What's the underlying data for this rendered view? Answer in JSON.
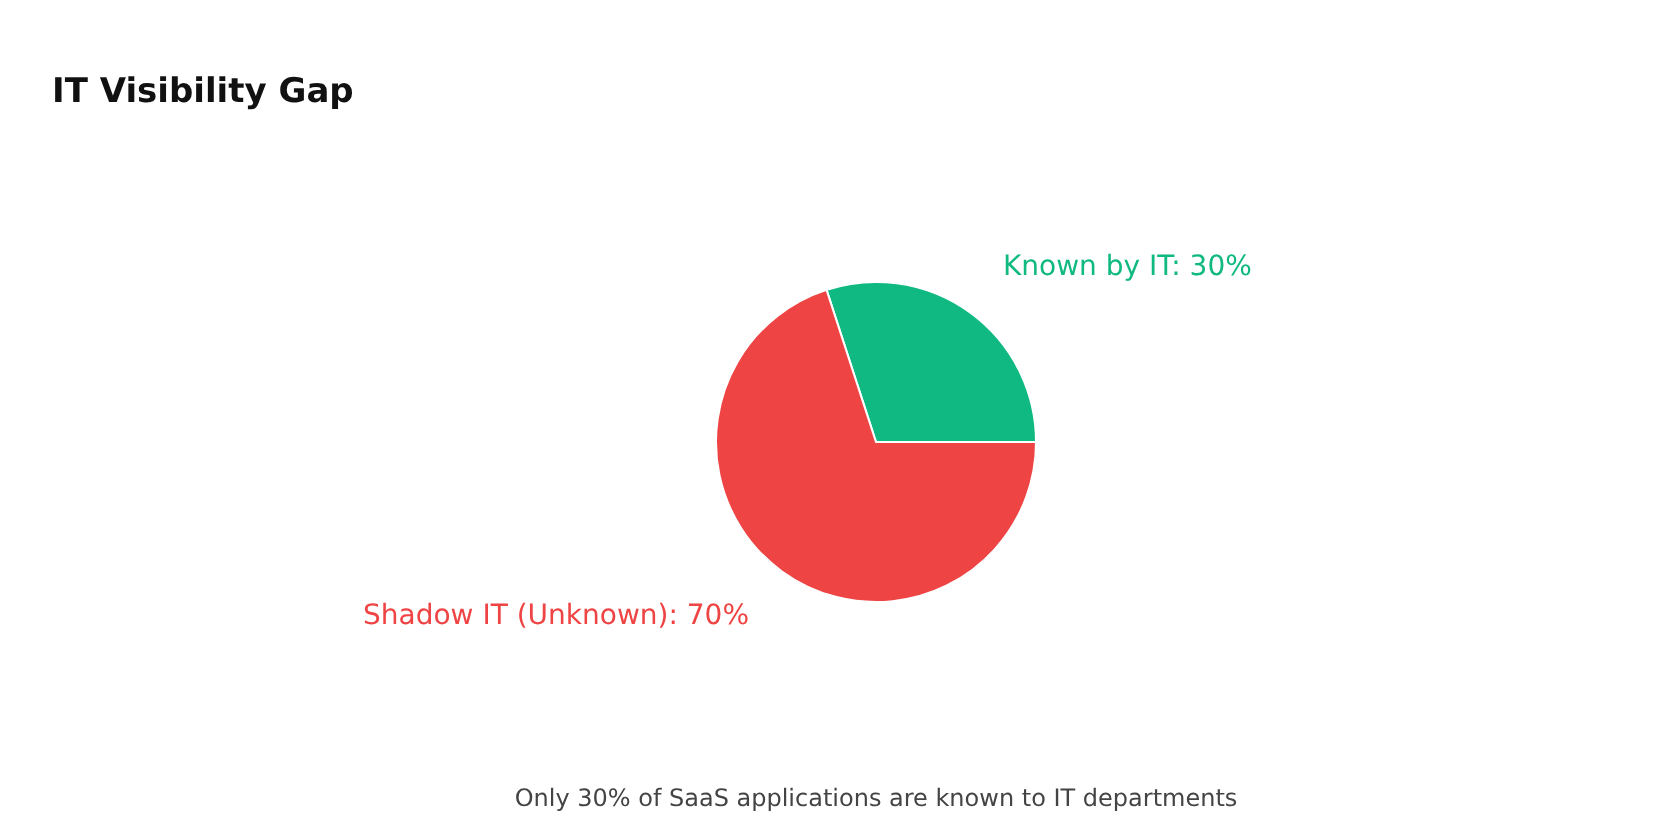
{
  "chart_data": {
    "type": "pie",
    "title": "IT Visibility Gap",
    "categories": [
      "Known by IT",
      "Shadow IT (Unknown)"
    ],
    "values": [
      30,
      70
    ],
    "colors": [
      "#10b981",
      "#ef4444"
    ],
    "value_labels": [
      "30%",
      "70%"
    ],
    "annotations": [
      "Only 30% of SaaS applications are known to IT departments"
    ]
  }
}
